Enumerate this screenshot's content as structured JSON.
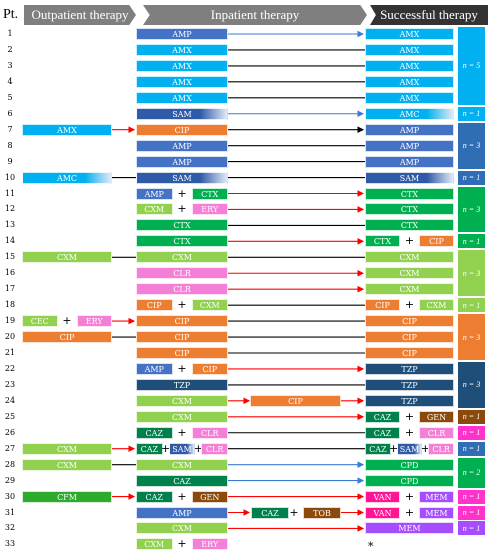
{
  "headers": {
    "pt": "Pt.",
    "outpatient": "Outpatient therapy",
    "inpatient": "Inpatient therapy",
    "successful": "Successful therapy"
  },
  "colors": {
    "AMP": "#4472c4",
    "AMX": "#00b0f0",
    "SAM": "#2e5aa8",
    "AMC": "#00b0f0",
    "CIP": "#ed7d31",
    "CTX": "#00b050",
    "CXM": "#92d050",
    "ERY": "#f47fd6",
    "CLR": "#f47fd6",
    "CEC": "#92d050",
    "TZP": "#1f4e79",
    "CAZ": "#00804a",
    "GEN": "#8b4a0c",
    "TOB": "#8b4a0c",
    "CFM": "#2eaa2e",
    "CPD": "#00b050",
    "VAN": "#ff1493",
    "MEM": "#a64dff",
    "n_blue": "#00b0f0",
    "n_darkblue": "#2f6db5",
    "n_green": "#00b050",
    "n_lightgreen": "#92d050",
    "n_orange": "#ed7d31",
    "n_navy": "#1f4e79",
    "n_brown": "#8b4a0c",
    "n_pink": "#ff33cc",
    "n_purple": "#a64dff",
    "arrow_blue": "#3a7bd5",
    "arrow_red": "#ff0000",
    "arrow_black": "#000000"
  },
  "rows": [
    {
      "pt": "1",
      "out": [],
      "in": [
        [
          "AMP"
        ]
      ],
      "succ": [
        [
          "AMX"
        ]
      ],
      "arrow": "blue"
    },
    {
      "pt": "2",
      "out": [],
      "in": [
        [
          "AMX"
        ]
      ],
      "succ": [
        [
          "AMX"
        ]
      ],
      "arrow": "none"
    },
    {
      "pt": "3",
      "out": [],
      "in": [
        [
          "AMX"
        ]
      ],
      "succ": [
        [
          "AMX"
        ]
      ],
      "arrow": "none"
    },
    {
      "pt": "4",
      "out": [],
      "in": [
        [
          "AMX"
        ]
      ],
      "succ": [
        [
          "AMX"
        ]
      ],
      "arrow": "none"
    },
    {
      "pt": "5",
      "out": [],
      "in": [
        [
          "AMX"
        ]
      ],
      "succ": [
        [
          "AMX"
        ]
      ],
      "arrow": "none"
    },
    {
      "pt": "6",
      "out": [],
      "in": [
        [
          "SAM"
        ]
      ],
      "succ": [
        [
          "AMC"
        ]
      ],
      "arrow": "blue"
    },
    {
      "pt": "7",
      "out": [
        [
          "AMX"
        ]
      ],
      "in": [
        [
          "CIP"
        ]
      ],
      "succ": [
        [
          "AMP"
        ]
      ],
      "arrow": "black",
      "out_arrow": "red"
    },
    {
      "pt": "8",
      "out": [],
      "in": [
        [
          "AMP"
        ]
      ],
      "succ": [
        [
          "AMP"
        ]
      ],
      "arrow": "none"
    },
    {
      "pt": "9",
      "out": [],
      "in": [
        [
          "AMP"
        ]
      ],
      "succ": [
        [
          "AMP"
        ]
      ],
      "arrow": "none"
    },
    {
      "pt": "10",
      "out": [
        [
          "AMC"
        ]
      ],
      "in": [
        [
          "SAM"
        ]
      ],
      "succ": [
        [
          "SAM"
        ]
      ],
      "arrow": "none",
      "out_arrow": "line"
    },
    {
      "pt": "11",
      "out": [],
      "in": [
        [
          "AMP",
          "CTX"
        ]
      ],
      "succ": [
        [
          "CTX"
        ]
      ],
      "arrow": "red"
    },
    {
      "pt": "12",
      "out": [],
      "in": [
        [
          "CXM",
          "ERY"
        ]
      ],
      "succ": [
        [
          "CTX"
        ]
      ],
      "arrow": "red"
    },
    {
      "pt": "13",
      "out": [],
      "in": [
        [
          "CTX"
        ]
      ],
      "succ": [
        [
          "CTX"
        ]
      ],
      "arrow": "none"
    },
    {
      "pt": "14",
      "out": [],
      "in": [
        [
          "CTX"
        ]
      ],
      "succ": [
        [
          "CTX",
          "CIP"
        ]
      ],
      "arrow": "red"
    },
    {
      "pt": "15",
      "out": [
        [
          "CXM"
        ]
      ],
      "in": [
        [
          "CXM"
        ]
      ],
      "succ": [
        [
          "CXM"
        ]
      ],
      "arrow": "none",
      "out_arrow": "line"
    },
    {
      "pt": "16",
      "out": [],
      "in": [
        [
          "CLR"
        ]
      ],
      "succ": [
        [
          "CXM"
        ]
      ],
      "arrow": "red"
    },
    {
      "pt": "17",
      "out": [],
      "in": [
        [
          "CLR"
        ]
      ],
      "succ": [
        [
          "CXM"
        ]
      ],
      "arrow": "red"
    },
    {
      "pt": "18",
      "out": [],
      "in": [
        [
          "CIP",
          "CXM"
        ]
      ],
      "succ": [
        [
          "CIP",
          "CXM"
        ]
      ],
      "arrow": "none"
    },
    {
      "pt": "19",
      "out": [
        [
          "CEC",
          "ERY"
        ]
      ],
      "in": [
        [
          "CIP"
        ]
      ],
      "succ": [
        [
          "CIP"
        ]
      ],
      "arrow": "none",
      "out_arrow": "red"
    },
    {
      "pt": "20",
      "out": [
        [
          "CIP"
        ]
      ],
      "in": [
        [
          "CIP"
        ]
      ],
      "succ": [
        [
          "CIP"
        ]
      ],
      "arrow": "none",
      "out_arrow": "line"
    },
    {
      "pt": "21",
      "out": [],
      "in": [
        [
          "CIP"
        ]
      ],
      "succ": [
        [
          "CIP"
        ]
      ],
      "arrow": "none"
    },
    {
      "pt": "22",
      "out": [],
      "in": [
        [
          "AMP",
          "CIP"
        ]
      ],
      "succ": [
        [
          "TZP"
        ]
      ],
      "arrow": "red"
    },
    {
      "pt": "23",
      "out": [],
      "in": [
        [
          "TZP"
        ]
      ],
      "succ": [
        [
          "TZP"
        ]
      ],
      "arrow": "none"
    },
    {
      "pt": "24",
      "out": [],
      "in": [
        [
          "CXM"
        ],
        [
          "CIP"
        ]
      ],
      "succ": [
        [
          "TZP"
        ]
      ],
      "arrow": "red"
    },
    {
      "pt": "25",
      "out": [],
      "in": [
        [
          "CXM"
        ]
      ],
      "succ": [
        [
          "CAZ",
          "GEN"
        ]
      ],
      "arrow": "red"
    },
    {
      "pt": "26",
      "out": [],
      "in": [
        [
          "CAZ",
          "CLR"
        ]
      ],
      "succ": [
        [
          "CAZ",
          "CLR"
        ]
      ],
      "arrow": "none"
    },
    {
      "pt": "27",
      "out": [
        [
          "CXM"
        ]
      ],
      "in": [
        [
          "CAZ",
          "SAM",
          "CLR"
        ]
      ],
      "succ": [
        [
          "CAZ",
          "SAM",
          "CLR"
        ]
      ],
      "arrow": "none",
      "out_arrow": "red"
    },
    {
      "pt": "28",
      "out": [
        [
          "CXM"
        ]
      ],
      "in": [
        [
          "CXM"
        ]
      ],
      "succ": [
        [
          "CPD"
        ]
      ],
      "arrow": "blue",
      "out_arrow": "line"
    },
    {
      "pt": "29",
      "out": [],
      "in": [
        [
          "CAZ"
        ]
      ],
      "succ": [
        [
          "CPD"
        ]
      ],
      "arrow": "blue"
    },
    {
      "pt": "30",
      "out": [
        [
          "CFM"
        ]
      ],
      "in": [
        [
          "CAZ",
          "GEN"
        ]
      ],
      "succ": [
        [
          "VAN",
          "MEM"
        ]
      ],
      "arrow": "red",
      "out_arrow": "red"
    },
    {
      "pt": "31",
      "out": [],
      "in": [
        [
          "AMP"
        ],
        [
          "CAZ",
          "TOB"
        ]
      ],
      "succ": [
        [
          "VAN",
          "MEM"
        ]
      ],
      "arrow": "red"
    },
    {
      "pt": "32",
      "out": [],
      "in": [
        [
          "CXM"
        ]
      ],
      "succ": [
        [
          "MEM"
        ]
      ],
      "arrow": "red"
    },
    {
      "pt": "33",
      "out": [],
      "in": [
        [
          "CXM",
          "ERY"
        ]
      ],
      "succ": [],
      "arrow": "none",
      "star": "*"
    }
  ],
  "groups": [
    {
      "label": "n = 5",
      "from": 1,
      "to": 5,
      "color": "n_blue"
    },
    {
      "label": "n = 1",
      "from": 6,
      "to": 6,
      "color": "n_blue"
    },
    {
      "label": "n = 3",
      "from": 7,
      "to": 9,
      "color": "n_darkblue"
    },
    {
      "label": "n = 1",
      "from": 10,
      "to": 10,
      "color": "n_darkblue"
    },
    {
      "label": "n = 3",
      "from": 11,
      "to": 13,
      "color": "n_green"
    },
    {
      "label": "n = 1",
      "from": 14,
      "to": 14,
      "color": "n_green"
    },
    {
      "label": "n = 3",
      "from": 15,
      "to": 17,
      "color": "n_lightgreen"
    },
    {
      "label": "n = 1",
      "from": 18,
      "to": 18,
      "color": "n_lightgreen"
    },
    {
      "label": "n = 3",
      "from": 19,
      "to": 21,
      "color": "n_orange"
    },
    {
      "label": "n = 3",
      "from": 22,
      "to": 24,
      "color": "n_navy"
    },
    {
      "label": "n = 1",
      "from": 25,
      "to": 25,
      "color": "n_brown"
    },
    {
      "label": "n = 1",
      "from": 26,
      "to": 26,
      "color": "n_pink"
    },
    {
      "label": "n = 1",
      "from": 27,
      "to": 27,
      "color": "n_darkblue"
    },
    {
      "label": "n = 2",
      "from": 28,
      "to": 29,
      "color": "n_green"
    },
    {
      "label": "n = 1",
      "from": 30,
      "to": 30,
      "color": "n_pink"
    },
    {
      "label": "n = 1",
      "from": 31,
      "to": 31,
      "color": "n_pink"
    },
    {
      "label": "n = 1",
      "from": 32,
      "to": 32,
      "color": "n_purple"
    }
  ]
}
